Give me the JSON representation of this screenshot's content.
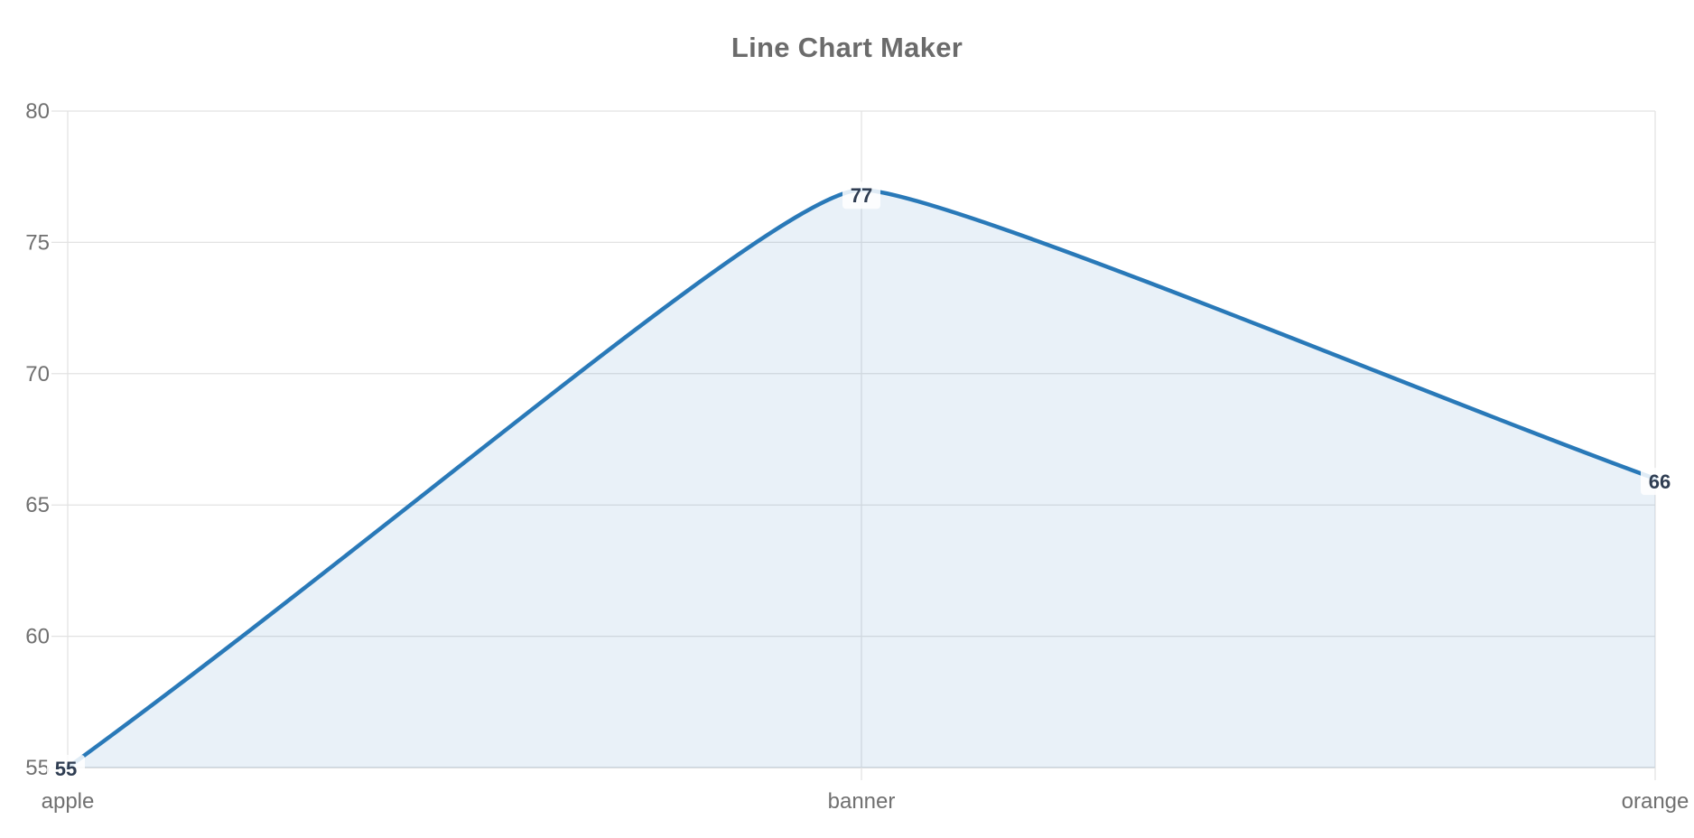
{
  "chart_data": {
    "type": "line",
    "title": "Line Chart Maker",
    "categories": [
      "apple",
      "banner",
      "orange"
    ],
    "values": [
      55,
      77,
      66
    ],
    "point_labels": [
      "55",
      "77",
      "66"
    ],
    "y_ticks": [
      80,
      75,
      70,
      65,
      60,
      55
    ],
    "ylim": [
      55,
      80
    ],
    "xlabel": "",
    "ylabel": "",
    "grid": true,
    "legend_position": "none",
    "smooth": true,
    "area_fill": true,
    "colors": {
      "line": "#2979b8",
      "area_fill": "rgba(41,121,184,0.10)",
      "gridline": "#e2e2e2",
      "axis_line": "#c9cdd1",
      "title_text": "#6b6b6b",
      "tick_text": "#707070",
      "data_label_text": "#2f3d52"
    }
  }
}
